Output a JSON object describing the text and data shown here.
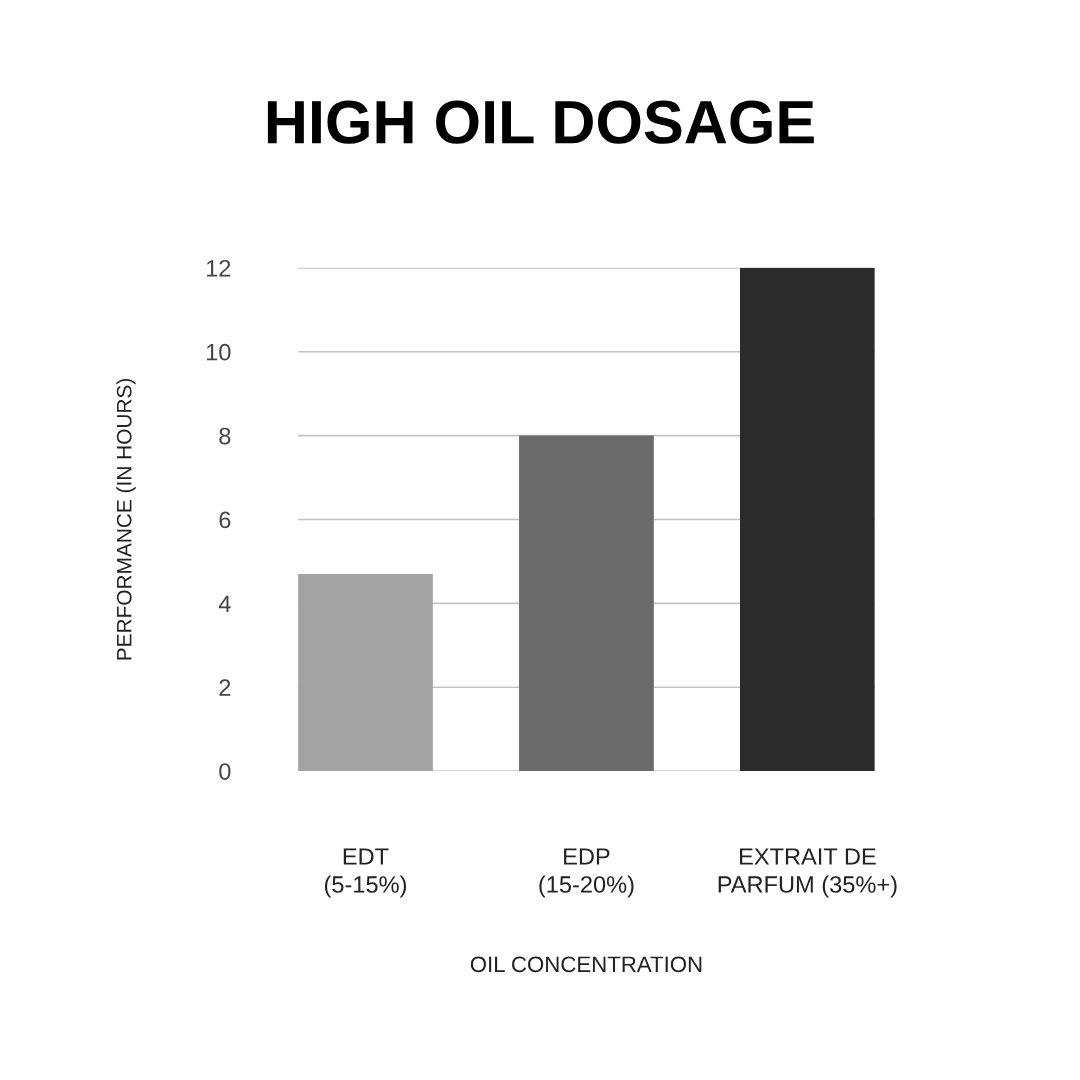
{
  "chart_data": {
    "type": "bar",
    "title": "HIGH OIL DOSAGE",
    "xlabel": "OIL CONCENTRATION",
    "ylabel": "PERFORMANCE (IN HOURS)",
    "categories": [
      "EDT\n(5-15%)",
      "EDP\n(15-20%)",
      "EXTRAIT DE\nPARFUM (35%+)"
    ],
    "values": [
      4.7,
      8,
      12
    ],
    "colors": [
      "#a3a3a3",
      "#6b6b6b",
      "#2b2b2b"
    ],
    "ylim": [
      0,
      12
    ],
    "yticks": [
      0,
      2,
      4,
      6,
      8,
      10,
      12
    ],
    "grid": "y"
  }
}
